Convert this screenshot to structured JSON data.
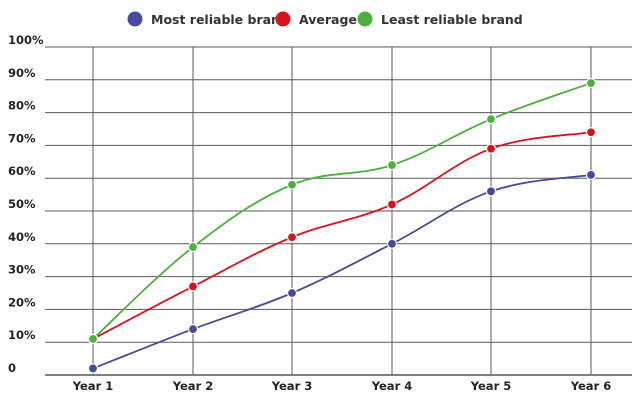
{
  "chart_data": {
    "type": "line",
    "categories": [
      "Year 1",
      "Year 2",
      "Year 3",
      "Year 4",
      "Year 5",
      "Year 6"
    ],
    "series": [
      {
        "name": "Most reliable brand",
        "color": "#48499a",
        "values": [
          2,
          14,
          25,
          40,
          56,
          61
        ]
      },
      {
        "name": "Average",
        "color": "#d7141e",
        "values": [
          11,
          27,
          42,
          52,
          69,
          74
        ]
      },
      {
        "name": "Least reliable brand",
        "color": "#4caf3e",
        "values": [
          11,
          39,
          58,
          64,
          78,
          89
        ]
      }
    ],
    "yticks": [
      "0",
      "10%",
      "20%",
      "30%",
      "40%",
      "50%",
      "60%",
      "70%",
      "80%",
      "90%",
      "100%"
    ],
    "ylim": [
      0,
      100
    ],
    "grid": true,
    "legend_position": "top-center",
    "line_style": "smooth",
    "markers": true
  }
}
